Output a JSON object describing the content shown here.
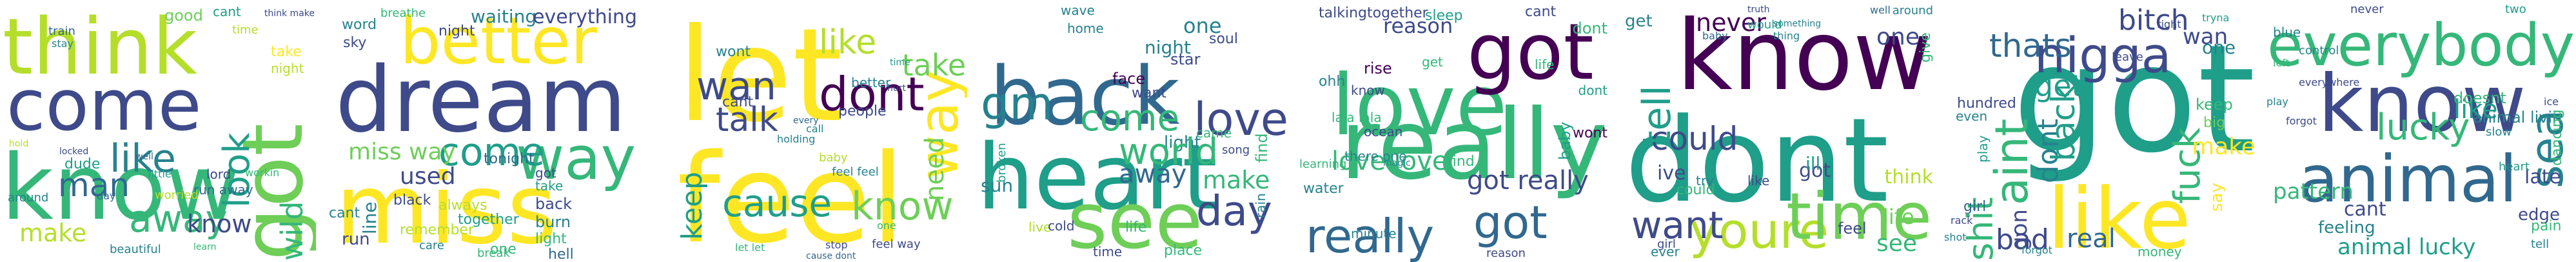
{
  "palette": {
    "dark_purple": "#440154",
    "indigo": "#3e4a89",
    "blue": "#31688e",
    "teal": "#26828e",
    "green_teal": "#1f9e89",
    "green": "#35b779",
    "light_green": "#6ece58",
    "lime": "#b5de2b",
    "yellow": "#fde725"
  },
  "panels": [
    {
      "words": [
        {
          "t": "think"
        },
        {
          "t": "come"
        },
        {
          "t": "know"
        },
        {
          "t": "got"
        },
        {
          "t": "man"
        },
        {
          "t": "like"
        },
        {
          "t": "look"
        },
        {
          "t": "away"
        },
        {
          "t": "make"
        },
        {
          "t": "wild"
        },
        {
          "t": "know"
        },
        {
          "t": "good"
        },
        {
          "t": "cant"
        },
        {
          "t": "train"
        },
        {
          "t": "stay"
        },
        {
          "t": "time"
        },
        {
          "t": "think make"
        },
        {
          "t": "take"
        },
        {
          "t": "night"
        },
        {
          "t": "run away"
        },
        {
          "t": "around"
        },
        {
          "t": "dude"
        },
        {
          "t": "lord"
        },
        {
          "t": "workin"
        },
        {
          "t": "worried"
        },
        {
          "t": "day"
        },
        {
          "t": "beautiful"
        },
        {
          "t": "learn"
        },
        {
          "t": "locked"
        },
        {
          "t": "little"
        },
        {
          "t": "hold"
        },
        {
          "t": "well"
        }
      ]
    },
    {
      "words": [
        {
          "t": "dream"
        },
        {
          "t": "better"
        },
        {
          "t": "miss"
        },
        {
          "t": "way"
        },
        {
          "t": "come"
        },
        {
          "t": "used"
        },
        {
          "t": "breathe"
        },
        {
          "t": "night"
        },
        {
          "t": "waiting"
        },
        {
          "t": "everything"
        },
        {
          "t": "word"
        },
        {
          "t": "sky"
        },
        {
          "t": "miss way"
        },
        {
          "t": "line"
        },
        {
          "t": "black"
        },
        {
          "t": "tonight"
        },
        {
          "t": "remember"
        },
        {
          "t": "back"
        },
        {
          "t": "burn"
        },
        {
          "t": "light"
        },
        {
          "t": "hell"
        },
        {
          "t": "together"
        },
        {
          "t": "run"
        },
        {
          "t": "one"
        },
        {
          "t": "cant"
        },
        {
          "t": "take"
        },
        {
          "t": "got"
        },
        {
          "t": "always"
        },
        {
          "t": "care"
        },
        {
          "t": "break"
        }
      ]
    },
    {
      "words": [
        {
          "t": "let"
        },
        {
          "t": "feel"
        },
        {
          "t": "like"
        },
        {
          "t": "dont"
        },
        {
          "t": "wan"
        },
        {
          "t": "talk"
        },
        {
          "t": "cause"
        },
        {
          "t": "know"
        },
        {
          "t": "way"
        },
        {
          "t": "need"
        },
        {
          "t": "take"
        },
        {
          "t": "keep"
        },
        {
          "t": "wont"
        },
        {
          "t": "cant"
        },
        {
          "t": "people"
        },
        {
          "t": "better"
        },
        {
          "t": "time"
        },
        {
          "t": "feel feel"
        },
        {
          "t": "let let"
        },
        {
          "t": "stop"
        },
        {
          "t": "cause dont"
        },
        {
          "t": "holding"
        },
        {
          "t": "baby"
        },
        {
          "t": "every"
        },
        {
          "t": "feel way"
        },
        {
          "t": "one"
        },
        {
          "t": "call"
        },
        {
          "t": "hurt"
        }
      ]
    },
    {
      "words": [
        {
          "t": "back"
        },
        {
          "t": "heart"
        },
        {
          "t": "see"
        },
        {
          "t": "light"
        },
        {
          "t": "come"
        },
        {
          "t": "world"
        },
        {
          "t": "day"
        },
        {
          "t": "love"
        },
        {
          "t": "gm"
        },
        {
          "t": "away"
        },
        {
          "t": "make"
        },
        {
          "t": "sun"
        },
        {
          "t": "one"
        },
        {
          "t": "time"
        },
        {
          "t": "live"
        },
        {
          "t": "cold"
        },
        {
          "t": "soul"
        },
        {
          "t": "night"
        },
        {
          "t": "star"
        },
        {
          "t": "home"
        },
        {
          "t": "wave"
        },
        {
          "t": "face"
        },
        {
          "t": "want"
        },
        {
          "t": "find"
        },
        {
          "t": "came"
        },
        {
          "t": "song"
        },
        {
          "t": "rain"
        },
        {
          "t": "life"
        },
        {
          "t": "place"
        },
        {
          "t": "broken"
        }
      ]
    },
    {
      "words": [
        {
          "t": "love"
        },
        {
          "t": "got"
        },
        {
          "t": "really"
        },
        {
          "t": "reason"
        },
        {
          "t": "really"
        },
        {
          "t": "got"
        },
        {
          "t": "love love"
        },
        {
          "t": "talkingtogether"
        },
        {
          "t": "sleep"
        },
        {
          "t": "cant"
        },
        {
          "t": "dont"
        },
        {
          "t": "ohh"
        },
        {
          "t": "know"
        },
        {
          "t": "rise"
        },
        {
          "t": "got really"
        },
        {
          "t": "lala lala"
        },
        {
          "t": "there one"
        },
        {
          "t": "water"
        },
        {
          "t": "learning"
        },
        {
          "t": "minute"
        },
        {
          "t": "find"
        },
        {
          "t": "ocean"
        },
        {
          "t": "baby"
        },
        {
          "t": "dont"
        },
        {
          "t": "wont"
        },
        {
          "t": "reason"
        },
        {
          "t": "get"
        },
        {
          "t": "magic"
        },
        {
          "t": "life"
        }
      ]
    },
    {
      "words": [
        {
          "t": "know"
        },
        {
          "t": "dont"
        },
        {
          "t": "youre"
        },
        {
          "t": "time"
        },
        {
          "t": "could"
        },
        {
          "t": "ive"
        },
        {
          "t": "tell"
        },
        {
          "t": "get"
        },
        {
          "t": "never"
        },
        {
          "t": "one"
        },
        {
          "t": "want"
        },
        {
          "t": "see"
        },
        {
          "t": "life"
        },
        {
          "t": "got"
        },
        {
          "t": "ill"
        },
        {
          "t": "think"
        },
        {
          "t": "like"
        },
        {
          "t": "give"
        },
        {
          "t": "feel"
        },
        {
          "t": "ever"
        },
        {
          "t": "girl"
        },
        {
          "t": "try"
        },
        {
          "t": "could"
        },
        {
          "t": "would"
        },
        {
          "t": "truth"
        },
        {
          "t": "baby"
        },
        {
          "t": "thing"
        },
        {
          "t": "something"
        },
        {
          "t": "well"
        },
        {
          "t": "around"
        }
      ]
    },
    {
      "words": [
        {
          "t": "got"
        },
        {
          "t": "like"
        },
        {
          "t": "nigga"
        },
        {
          "t": "thats"
        },
        {
          "t": "aint"
        },
        {
          "t": "shit"
        },
        {
          "t": "bitch"
        },
        {
          "t": "get"
        },
        {
          "t": "fuck"
        },
        {
          "t": "dont"
        },
        {
          "t": "back"
        },
        {
          "t": "gon"
        },
        {
          "t": "bad"
        },
        {
          "t": "real"
        },
        {
          "t": "wan"
        },
        {
          "t": "one"
        },
        {
          "t": "keep"
        },
        {
          "t": "make"
        },
        {
          "t": "big"
        },
        {
          "t": "right"
        },
        {
          "t": "tryna"
        },
        {
          "t": "hundred"
        },
        {
          "t": "even"
        },
        {
          "t": "girl"
        },
        {
          "t": "money"
        },
        {
          "t": "say"
        },
        {
          "t": "leave"
        },
        {
          "t": "play"
        },
        {
          "t": "forgot"
        },
        {
          "t": "rack"
        },
        {
          "t": "shot"
        }
      ]
    },
    {
      "words": [
        {
          "t": "everybody"
        },
        {
          "t": "know"
        },
        {
          "t": "animal"
        },
        {
          "t": "sea"
        },
        {
          "t": "lucky"
        },
        {
          "t": "like"
        },
        {
          "t": "pattern"
        },
        {
          "t": "feeling"
        },
        {
          "t": "cant"
        },
        {
          "t": "animal lucky"
        },
        {
          "t": "doesnt"
        },
        {
          "t": "animal livin"
        },
        {
          "t": "late"
        },
        {
          "t": "blue"
        },
        {
          "t": "never"
        },
        {
          "t": "two"
        },
        {
          "t": "everywhere"
        },
        {
          "t": "dancing"
        },
        {
          "t": "control"
        },
        {
          "t": "edge"
        },
        {
          "t": "pain"
        },
        {
          "t": "forgot"
        },
        {
          "t": "play"
        },
        {
          "t": "slow"
        },
        {
          "t": "left"
        },
        {
          "t": "ice"
        },
        {
          "t": "heart"
        },
        {
          "t": "tell"
        }
      ]
    }
  ]
}
